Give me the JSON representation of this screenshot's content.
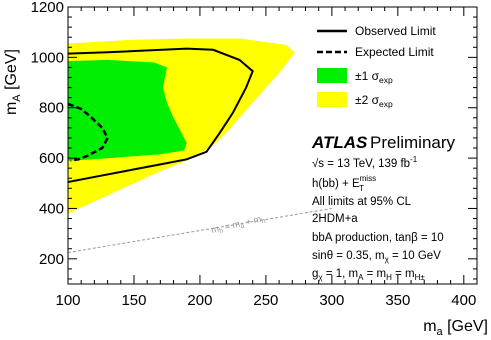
{
  "chart_data": {
    "type": "area",
    "xlabel": "m_a [GeV]",
    "ylabel": "m_A [GeV]",
    "xlim": [
      100,
      410
    ],
    "ylim": [
      100,
      1200
    ],
    "x_ticks": [
      "100",
      "150",
      "200",
      "250",
      "300",
      "350",
      "400"
    ],
    "y_ticks": [
      "200",
      "400",
      "600",
      "800",
      "1000",
      "1200"
    ],
    "grid": false,
    "legend_position": "top-right",
    "colors": {
      "band_2sigma": "#ffff00",
      "band_1sigma": "#00ee00",
      "observed": "#000000",
      "expected": "#000000",
      "diagonal": "#999999"
    },
    "legend": [
      {
        "key": "observed",
        "label": "Observed Limit",
        "style": "solid-line"
      },
      {
        "key": "expected",
        "label": "Expected Limit",
        "style": "dashed-line"
      },
      {
        "key": "band_1sigma",
        "label": "±1 σ",
        "sub": "exp",
        "style": "fill"
      },
      {
        "key": "band_2sigma",
        "label": "±2 σ",
        "sub": "exp",
        "style": "fill"
      }
    ],
    "band_2sigma": [
      [
        100,
        1055
      ],
      [
        150,
        1070
      ],
      [
        190,
        1075
      ],
      [
        230,
        1075
      ],
      [
        265,
        1050
      ],
      [
        272,
        1020
      ],
      [
        262,
        950
      ],
      [
        245,
        850
      ],
      [
        230,
        760
      ],
      [
        220,
        700
      ],
      [
        210,
        650
      ],
      [
        200,
        620
      ],
      [
        190,
        590
      ],
      [
        175,
        560
      ],
      [
        150,
        500
      ],
      [
        125,
        440
      ],
      [
        100,
        380
      ]
    ],
    "band_1sigma": [
      [
        100,
        985
      ],
      [
        130,
        990
      ],
      [
        165,
        980
      ],
      [
        175,
        960
      ],
      [
        172,
        880
      ],
      [
        175,
        820
      ],
      [
        180,
        760
      ],
      [
        186,
        700
      ],
      [
        190,
        660
      ],
      [
        188,
        630
      ],
      [
        170,
        615
      ],
      [
        145,
        605
      ],
      [
        120,
        595
      ],
      [
        100,
        590
      ]
    ],
    "observed": [
      [
        100,
        1015
      ],
      [
        130,
        1020
      ],
      [
        190,
        1035
      ],
      [
        210,
        1030
      ],
      [
        230,
        990
      ],
      [
        240,
        945
      ],
      [
        235,
        880
      ],
      [
        225,
        780
      ],
      [
        215,
        700
      ],
      [
        205,
        625
      ],
      [
        190,
        595
      ],
      [
        170,
        575
      ],
      [
        150,
        555
      ],
      [
        125,
        530
      ],
      [
        100,
        505
      ]
    ],
    "expected": [
      [
        100,
        815
      ],
      [
        110,
        795
      ],
      [
        118,
        760
      ],
      [
        126,
        720
      ],
      [
        130,
        680
      ],
      [
        126,
        640
      ],
      [
        115,
        610
      ],
      [
        108,
        595
      ],
      [
        102,
        590
      ]
    ],
    "diagonal": {
      "label": "m_h = m_a + m_h",
      "points": [
        [
          100,
          225
        ],
        [
          300,
          400
        ]
      ]
    },
    "annotations": {
      "atlas": "ATLAS",
      "preliminary": "Preliminary",
      "lines": [
        "√s = 13 TeV, 139 fb⁻¹",
        "h(bb) + E_T^miss",
        "All limits at 95% CL",
        "2HDM+a",
        "bbA production, tanβ = 10",
        "sinθ = 0.35, m_χ = 10 GeV",
        "g_χ = 1, m_A = m_H = m_H±"
      ]
    }
  }
}
